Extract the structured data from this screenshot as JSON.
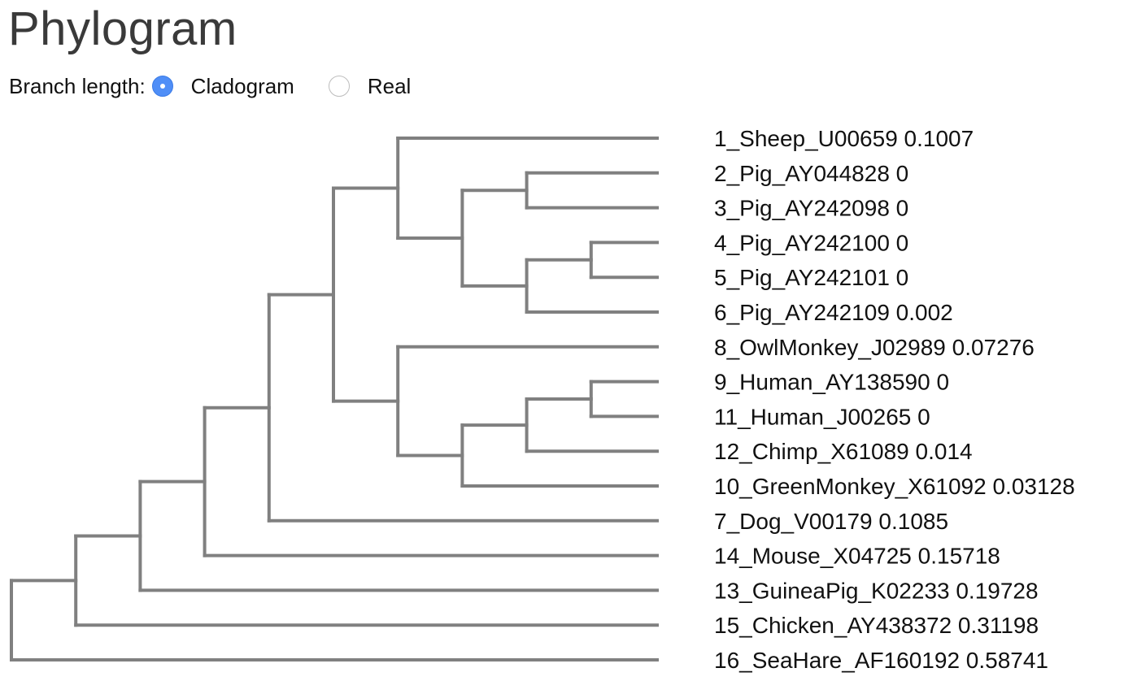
{
  "title": "Phylogram",
  "branch_length": {
    "label": "Branch length:",
    "options": [
      {
        "label": "Cladogram",
        "selected": true
      },
      {
        "label": "Real",
        "selected": false
      }
    ]
  },
  "colors": {
    "branch": "#808080",
    "radio_selected": "#4f8ef7"
  },
  "tree": {
    "children": [
      {
        "children": [
          {
            "children": [
              {
                "children": [
                  {
                    "children": [
                      {
                        "children": [
                          {
                            "children": [
                              {
                                "name": "1_Sheep_U00659 0.1007"
                              },
                              {
                                "children": [
                                  {
                                    "children": [
                                      {
                                        "name": "2_Pig_AY044828 0"
                                      },
                                      {
                                        "name": "3_Pig_AY242098 0"
                                      }
                                    ]
                                  },
                                  {
                                    "children": [
                                      {
                                        "children": [
                                          {
                                            "name": "4_Pig_AY242100 0"
                                          },
                                          {
                                            "name": "5_Pig_AY242101 0"
                                          }
                                        ]
                                      },
                                      {
                                        "name": "6_Pig_AY242109 0.002"
                                      }
                                    ]
                                  }
                                ]
                              }
                            ]
                          },
                          {
                            "children": [
                              {
                                "name": "8_OwlMonkey_J02989 0.07276"
                              },
                              {
                                "children": [
                                  {
                                    "children": [
                                      {
                                        "children": [
                                          {
                                            "name": "9_Human_AY138590 0"
                                          },
                                          {
                                            "name": "11_Human_J00265 0"
                                          }
                                        ]
                                      },
                                      {
                                        "name": "12_Chimp_X61089 0.014"
                                      }
                                    ]
                                  },
                                  {
                                    "name": "10_GreenMonkey_X61092 0.03128"
                                  }
                                ]
                              }
                            ]
                          }
                        ]
                      },
                      {
                        "name": "7_Dog_V00179 0.1085"
                      }
                    ]
                  },
                  {
                    "name": "14_Mouse_X04725 0.15718"
                  }
                ]
              },
              {
                "name": "13_GuineaPig_K02233 0.19728"
              }
            ]
          },
          {
            "name": "15_Chicken_AY438372 0.31198"
          }
        ]
      },
      {
        "name": "16_SeaHare_AF160192 0.58741"
      }
    ]
  }
}
